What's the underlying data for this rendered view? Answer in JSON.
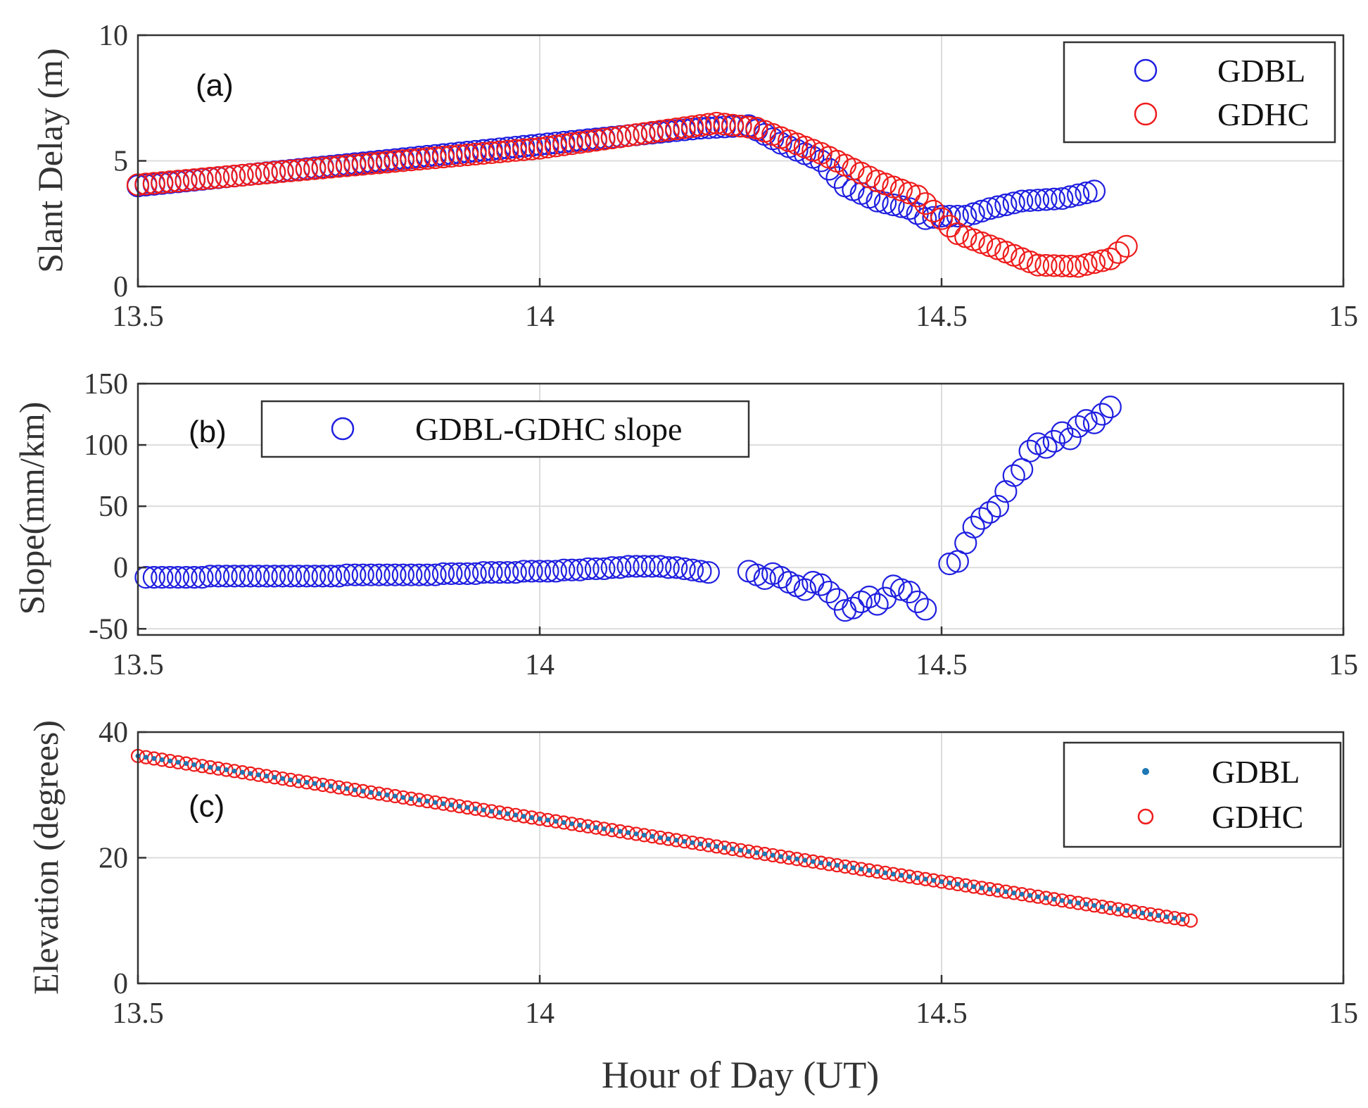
{
  "colors": {
    "gdbl": "#1f1fe0",
    "gdhc": "#ee1c1c",
    "gdbl_dot": "#1f77b4",
    "axis": "#333333",
    "grid": "#dcdcdc"
  },
  "figure": {
    "xlabel": "Hour of Day (UT)"
  },
  "chart_data": [
    {
      "panel": "a",
      "type": "scatter",
      "panel_label": "(a)",
      "ylabel": "Slant Delay (m)",
      "xlim": [
        13.5,
        15
      ],
      "ylim": [
        0,
        10
      ],
      "x_ticks": [
        13.5,
        14,
        14.5,
        15
      ],
      "x_tick_labels": [
        "13.5",
        "14",
        "14.5",
        "15"
      ],
      "y_ticks": [
        0,
        5,
        10
      ],
      "y_tick_labels": [
        "0",
        "5",
        "10"
      ],
      "legend_position": "top-right",
      "series": [
        {
          "name": "GDBL",
          "marker": "circle-open",
          "color": "#1f1fe0",
          "x_start": 13.5,
          "x_end": 14.69,
          "x_step": 0.01,
          "y_keypoints": [
            [
              13.5,
              4.0
            ],
            [
              14.2,
              6.3
            ],
            [
              14.26,
              6.4
            ],
            [
              14.3,
              5.7
            ],
            [
              14.35,
              5.0
            ],
            [
              14.38,
              4.0
            ],
            [
              14.42,
              3.4
            ],
            [
              14.46,
              3.1
            ],
            [
              14.48,
              2.7
            ],
            [
              14.5,
              2.8
            ],
            [
              14.53,
              2.8
            ],
            [
              14.56,
              3.1
            ],
            [
              14.6,
              3.4
            ],
            [
              14.65,
              3.5
            ],
            [
              14.69,
              3.8
            ]
          ]
        },
        {
          "name": "GDHC",
          "marker": "circle-open",
          "color": "#ee1c1c",
          "x_start": 13.5,
          "x_end": 14.73,
          "x_step": 0.01,
          "y_keypoints": [
            [
              13.5,
              4.05
            ],
            [
              14.0,
              5.5
            ],
            [
              14.22,
              6.5
            ],
            [
              14.27,
              6.3
            ],
            [
              14.35,
              5.3
            ],
            [
              14.42,
              4.2
            ],
            [
              14.47,
              3.6
            ],
            [
              14.52,
              2.1
            ],
            [
              14.57,
              1.5
            ],
            [
              14.62,
              0.85
            ],
            [
              14.67,
              0.8
            ],
            [
              14.71,
              1.1
            ],
            [
              14.73,
              1.6
            ]
          ]
        }
      ]
    },
    {
      "panel": "b",
      "type": "scatter",
      "panel_label": "(b)",
      "ylabel": "Slope(mm/km)",
      "xlim": [
        13.5,
        15
      ],
      "ylim": [
        -55,
        150
      ],
      "x_ticks": [
        13.5,
        14,
        14.5,
        15
      ],
      "x_tick_labels": [
        "13.5",
        "14",
        "14.5",
        "15"
      ],
      "y_ticks": [
        -50,
        0,
        50,
        100,
        150
      ],
      "y_tick_labels": [
        "-50",
        "0",
        "50",
        "100",
        "150"
      ],
      "legend_position": "top-left",
      "series": [
        {
          "name": "GDBL-GDHC slope",
          "marker": "circle-open",
          "color": "#1f1fe0",
          "points": [
            [
              13.51,
              -8
            ],
            [
              13.52,
              -8
            ],
            [
              13.53,
              -8
            ],
            [
              13.54,
              -8
            ],
            [
              13.55,
              -8
            ],
            [
              13.56,
              -8
            ],
            [
              13.57,
              -8
            ],
            [
              13.58,
              -8
            ],
            [
              13.59,
              -7
            ],
            [
              13.6,
              -7
            ],
            [
              13.61,
              -7
            ],
            [
              13.62,
              -7
            ],
            [
              13.63,
              -7
            ],
            [
              13.64,
              -7
            ],
            [
              13.65,
              -7
            ],
            [
              13.66,
              -7
            ],
            [
              13.67,
              -7
            ],
            [
              13.68,
              -7
            ],
            [
              13.69,
              -7
            ],
            [
              13.7,
              -7
            ],
            [
              13.71,
              -7
            ],
            [
              13.72,
              -7
            ],
            [
              13.73,
              -7
            ],
            [
              13.74,
              -7
            ],
            [
              13.75,
              -7
            ],
            [
              13.76,
              -6
            ],
            [
              13.77,
              -6
            ],
            [
              13.78,
              -6
            ],
            [
              13.79,
              -6
            ],
            [
              13.8,
              -6
            ],
            [
              13.81,
              -6
            ],
            [
              13.82,
              -6
            ],
            [
              13.83,
              -6
            ],
            [
              13.84,
              -6
            ],
            [
              13.85,
              -6
            ],
            [
              13.86,
              -6
            ],
            [
              13.87,
              -6
            ],
            [
              13.88,
              -5
            ],
            [
              13.89,
              -5
            ],
            [
              13.9,
              -5
            ],
            [
              13.91,
              -5
            ],
            [
              13.92,
              -5
            ],
            [
              13.93,
              -4
            ],
            [
              13.94,
              -4
            ],
            [
              13.95,
              -4
            ],
            [
              13.96,
              -4
            ],
            [
              13.97,
              -4
            ],
            [
              13.98,
              -3
            ],
            [
              13.99,
              -3
            ],
            [
              14.0,
              -3
            ],
            [
              14.01,
              -3
            ],
            [
              14.02,
              -3
            ],
            [
              14.03,
              -2
            ],
            [
              14.04,
              -2
            ],
            [
              14.05,
              -2
            ],
            [
              14.06,
              -1
            ],
            [
              14.07,
              -1
            ],
            [
              14.08,
              -1
            ],
            [
              14.09,
              0
            ],
            [
              14.1,
              0
            ],
            [
              14.11,
              1
            ],
            [
              14.12,
              1
            ],
            [
              14.13,
              1
            ],
            [
              14.14,
              1
            ],
            [
              14.15,
              1
            ],
            [
              14.16,
              0
            ],
            [
              14.17,
              0
            ],
            [
              14.18,
              -1
            ],
            [
              14.19,
              -2
            ],
            [
              14.2,
              -3
            ],
            [
              14.21,
              -4
            ],
            [
              14.26,
              -3
            ],
            [
              14.27,
              -6
            ],
            [
              14.28,
              -9
            ],
            [
              14.29,
              -5
            ],
            [
              14.3,
              -8
            ],
            [
              14.31,
              -12
            ],
            [
              14.32,
              -15
            ],
            [
              14.33,
              -18
            ],
            [
              14.34,
              -12
            ],
            [
              14.35,
              -14
            ],
            [
              14.36,
              -20
            ],
            [
              14.37,
              -26
            ],
            [
              14.38,
              -35
            ],
            [
              14.39,
              -33
            ],
            [
              14.4,
              -28
            ],
            [
              14.41,
              -24
            ],
            [
              14.42,
              -30
            ],
            [
              14.43,
              -25
            ],
            [
              14.44,
              -15
            ],
            [
              14.45,
              -18
            ],
            [
              14.46,
              -20
            ],
            [
              14.47,
              -28
            ],
            [
              14.48,
              -34
            ],
            [
              14.51,
              3
            ],
            [
              14.52,
              5
            ],
            [
              14.53,
              20
            ],
            [
              14.54,
              33
            ],
            [
              14.55,
              40
            ],
            [
              14.56,
              45
            ],
            [
              14.57,
              50
            ],
            [
              14.58,
              62
            ],
            [
              14.59,
              75
            ],
            [
              14.6,
              80
            ],
            [
              14.61,
              95
            ],
            [
              14.62,
              101
            ],
            [
              14.63,
              98
            ],
            [
              14.64,
              103
            ],
            [
              14.65,
              110
            ],
            [
              14.66,
              105
            ],
            [
              14.67,
              115
            ],
            [
              14.68,
              120
            ],
            [
              14.69,
              118
            ],
            [
              14.7,
              125
            ],
            [
              14.71,
              131
            ]
          ]
        }
      ]
    },
    {
      "panel": "c",
      "type": "scatter",
      "panel_label": "(c)",
      "ylabel": "Elevation (degrees)",
      "xlim": [
        13.5,
        15
      ],
      "ylim": [
        0,
        40
      ],
      "x_ticks": [
        13.5,
        14,
        14.5,
        15
      ],
      "x_tick_labels": [
        "13.5",
        "14",
        "14.5",
        "15"
      ],
      "y_ticks": [
        0,
        20,
        40
      ],
      "y_tick_labels": [
        "0",
        "20",
        "40"
      ],
      "legend_position": "top-right",
      "series": [
        {
          "name": "GDBL",
          "marker": "dot",
          "color": "#1f77b4",
          "x_start": 13.5,
          "x_end": 14.8,
          "x_step": 0.01,
          "y_keypoints": [
            [
              13.5,
              36.2
            ],
            [
              14.8,
              10.2
            ]
          ]
        },
        {
          "name": "GDHC",
          "marker": "circle-open",
          "color": "#ee1c1c",
          "x_start": 13.5,
          "x_end": 14.81,
          "x_step": 0.01,
          "y_keypoints": [
            [
              13.5,
              36.2
            ],
            [
              14.81,
              10.0
            ]
          ]
        }
      ]
    }
  ]
}
